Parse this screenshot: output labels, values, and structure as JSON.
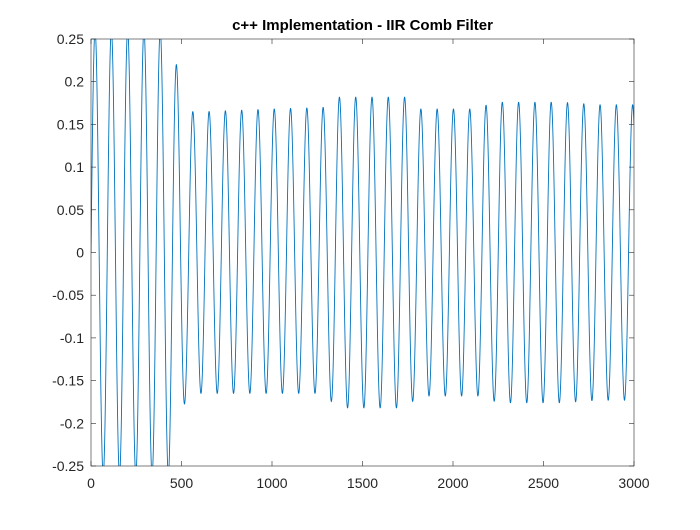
{
  "chart_data": {
    "type": "line",
    "title": "c++ Implementation - IIR Comb Filter",
    "xlabel": "",
    "ylabel": "",
    "xlim": [
      0,
      3000
    ],
    "ylim": [
      -0.25,
      0.25
    ],
    "grid": false,
    "legend": "none",
    "x_ticks": [
      "0",
      "500",
      "1000",
      "1500",
      "2000",
      "2500",
      "3000"
    ],
    "y_ticks": [
      "-0.25",
      "-0.2",
      "-0.15",
      "-0.1",
      "-0.05",
      "0",
      "0.05",
      "0.1",
      "0.15",
      "0.2",
      "0.25"
    ],
    "series": [
      {
        "color": "#0072bd",
        "period_samples": 90,
        "peaks": [
          {
            "x": 0,
            "y": 0.26
          },
          {
            "x": 90,
            "y": 0.26
          },
          {
            "x": 180,
            "y": 0.26
          },
          {
            "x": 270,
            "y": 0.26
          },
          {
            "x": 360,
            "y": 0.26
          },
          {
            "x": 430,
            "y": 0.26
          },
          {
            "x": 530,
            "y": 0.165
          },
          {
            "x": 630,
            "y": 0.165
          },
          {
            "x": 1000,
            "y": 0.168
          },
          {
            "x": 1300,
            "y": 0.17
          },
          {
            "x": 1340,
            "y": 0.182
          },
          {
            "x": 1750,
            "y": 0.182
          },
          {
            "x": 1800,
            "y": 0.168
          },
          {
            "x": 2100,
            "y": 0.168
          },
          {
            "x": 2250,
            "y": 0.176
          },
          {
            "x": 2600,
            "y": 0.176
          },
          {
            "x": 2800,
            "y": 0.173
          },
          {
            "x": 3000,
            "y": 0.173
          }
        ],
        "troughs": [
          {
            "x": 0,
            "y": -0.26
          },
          {
            "x": 430,
            "y": -0.26
          },
          {
            "x": 530,
            "y": -0.165
          },
          {
            "x": 630,
            "y": -0.165
          },
          {
            "x": 1300,
            "y": -0.165
          },
          {
            "x": 1350,
            "y": -0.182
          },
          {
            "x": 1750,
            "y": -0.182
          },
          {
            "x": 1800,
            "y": -0.168
          },
          {
            "x": 2150,
            "y": -0.168
          },
          {
            "x": 2250,
            "y": -0.176
          },
          {
            "x": 2600,
            "y": -0.176
          },
          {
            "x": 2800,
            "y": -0.173
          },
          {
            "x": 3000,
            "y": -0.173
          }
        ]
      }
    ]
  }
}
